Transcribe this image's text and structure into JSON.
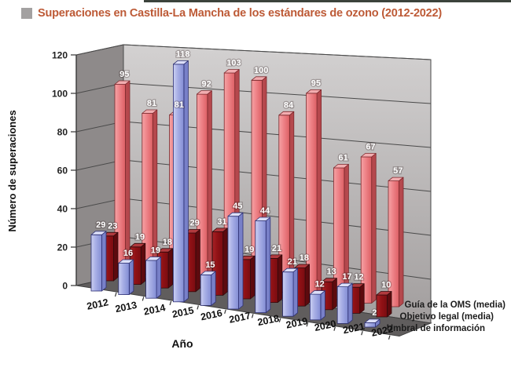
{
  "title": {
    "text": "Superaciones en Castilla-La Mancha de los estándares de ozono (2012-2022)",
    "color": "#bd5a36",
    "bullet_color": "#a3a1a1"
  },
  "chart_data": {
    "type": "bar",
    "projection": "3d",
    "title": "Superaciones en Castilla-La Mancha de los estándares de ozono (2012-2022)",
    "categories": [
      "2012",
      "2013",
      "2014",
      "2015",
      "2016",
      "2017",
      "2018",
      "2019",
      "2020",
      "2021",
      "2022"
    ],
    "series": [
      {
        "name": "Guía de la OMS (media)",
        "color": "#ee8287",
        "values": [
          95,
          81,
          81,
          92,
          103,
          100,
          84,
          95,
          61,
          67,
          57
        ]
      },
      {
        "name": "Objetivo legal (media)",
        "color": "#8f1115",
        "values": [
          23,
          19,
          18,
          29,
          31,
          19,
          21,
          18,
          13,
          12,
          10
        ]
      },
      {
        "name": "Umbral de información",
        "color": "#a9b0e6",
        "values": [
          29,
          16,
          19,
          118,
          15,
          45,
          44,
          21,
          12,
          17,
          2
        ]
      }
    ],
    "xlabel": "Año",
    "ylabel": "Número de superaciones",
    "ylim": [
      0,
      120
    ],
    "yticks": [
      0,
      20,
      40,
      60,
      80,
      100,
      120
    ],
    "value_labels": true,
    "grid": true,
    "legend_position": "right-bottom",
    "wall_color": "#b8b4b4",
    "floor_color": "#605d5d"
  }
}
